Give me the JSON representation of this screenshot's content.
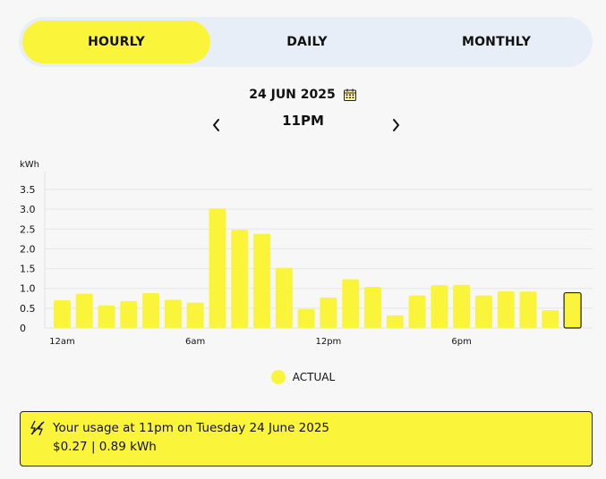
{
  "tabs": [
    {
      "label": "HOURLY",
      "active": true
    },
    {
      "label": "DAILY",
      "active": false
    },
    {
      "label": "MONTHLY",
      "active": false
    }
  ],
  "date": {
    "label": "24 JUN 2025",
    "icon": "calendar-icon"
  },
  "hour": {
    "label": "11PM",
    "prev_icon": "chevron-left-icon",
    "next_icon": "chevron-right-icon"
  },
  "colors": {
    "accent": "#faf53a",
    "tab_bg": "#e7eef7",
    "grid": "#e6e6e6"
  },
  "chart_data": {
    "type": "bar",
    "ylabel": "kWh",
    "ylim": [
      0,
      3.5
    ],
    "yticks": [
      "0",
      "0.5",
      "1.0",
      "1.5",
      "2.0",
      "2.5",
      "3.0",
      "3.5"
    ],
    "xtick_labels": [
      "12am",
      "6am",
      "12pm",
      "6pm"
    ],
    "categories": [
      "12am",
      "1am",
      "2am",
      "3am",
      "4am",
      "5am",
      "6am",
      "7am",
      "8am",
      "9am",
      "10am",
      "11am",
      "12pm",
      "1pm",
      "2pm",
      "3pm",
      "4pm",
      "5pm",
      "6pm",
      "7pm",
      "8pm",
      "9pm",
      "10pm",
      "11pm"
    ],
    "series": [
      {
        "name": "ACTUAL",
        "values": [
          0.7,
          0.87,
          0.57,
          0.68,
          0.88,
          0.71,
          0.64,
          3.02,
          2.48,
          2.38,
          1.52,
          0.48,
          0.77,
          1.23,
          1.04,
          0.32,
          0.82,
          1.08,
          1.09,
          0.82,
          0.93,
          0.92,
          0.45,
          0.89
        ]
      }
    ],
    "highlight_index": 23,
    "grid": true,
    "legend": "bottom-center"
  },
  "summary": {
    "icon": "lightning-icon",
    "line1": "Your usage at 11pm on Tuesday 24 June 2025",
    "line2": "$0.27 | 0.89 kWh"
  }
}
